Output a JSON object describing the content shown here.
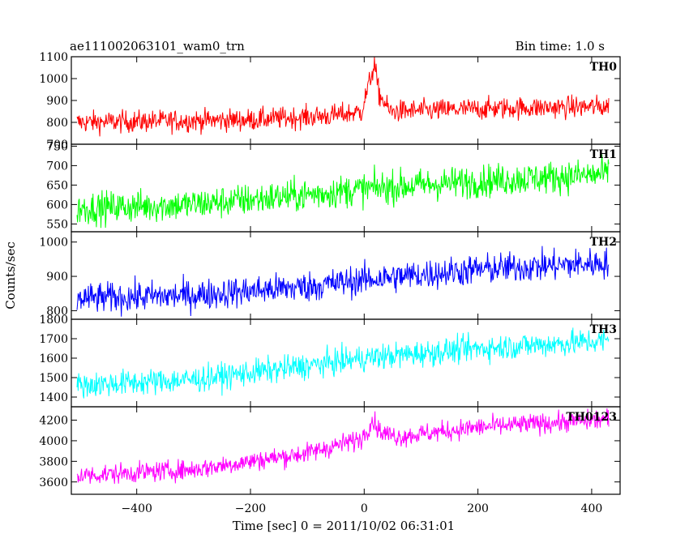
{
  "chart_data": {
    "type": "line",
    "title_left": "ae111002063101_wam0_trn",
    "title_right": "Bin time: 1.0 s",
    "xlabel": "Time [sec] 0 = 2011/10/02 06:31:01",
    "ylabel": "Counts/sec",
    "xlim": [
      -515,
      450
    ],
    "x_ticks": [
      -400,
      -200,
      0,
      200,
      400
    ],
    "x_tick_labels": [
      "−400",
      "−200",
      "0",
      "200",
      "400"
    ],
    "x_range": [
      -505,
      430
    ],
    "panels": [
      {
        "name": "TH0",
        "color": "#ff0000",
        "ylim": [
          700,
          1100
        ],
        "y_ticks": [
          700,
          800,
          900,
          1000,
          1100
        ],
        "y_tick_labels": [
          "700",
          "800",
          "900",
          "1000",
          "1100"
        ],
        "trend": [
          [
            -505,
            800
          ],
          [
            -200,
            812
          ],
          [
            -60,
            830
          ],
          [
            -5,
            848
          ],
          [
            10,
            990
          ],
          [
            18,
            1065
          ],
          [
            26,
            930
          ],
          [
            45,
            850
          ],
          [
            120,
            855
          ],
          [
            250,
            865
          ],
          [
            430,
            872
          ]
        ],
        "noise": 36
      },
      {
        "name": "TH1",
        "color": "#00ff00",
        "ylim": [
          530,
          755
        ],
        "y_ticks": [
          550,
          600,
          650,
          700,
          750
        ],
        "y_tick_labels": [
          "550",
          "600",
          "650",
          "700",
          "750"
        ],
        "trend": [
          [
            -505,
            590
          ],
          [
            -300,
            600
          ],
          [
            -100,
            625
          ],
          [
            0,
            640
          ],
          [
            200,
            660
          ],
          [
            430,
            678
          ]
        ],
        "noise": 30
      },
      {
        "name": "TH2",
        "color": "#0000ff",
        "ylim": [
          775,
          1030
        ],
        "y_ticks": [
          800,
          900,
          1000
        ],
        "y_tick_labels": [
          "800",
          "900",
          "1000"
        ],
        "trend": [
          [
            -505,
            835
          ],
          [
            -300,
            845
          ],
          [
            -100,
            870
          ],
          [
            0,
            890
          ],
          [
            200,
            920
          ],
          [
            430,
            940
          ]
        ],
        "noise": 32
      },
      {
        "name": "TH3",
        "color": "#00ffff",
        "ylim": [
          1350,
          1800
        ],
        "y_ticks": [
          1400,
          1500,
          1600,
          1700,
          1800
        ],
        "y_tick_labels": [
          "1400",
          "1500",
          "1600",
          "1700",
          "1800"
        ],
        "trend": [
          [
            -505,
            1460
          ],
          [
            -300,
            1490
          ],
          [
            -100,
            1560
          ],
          [
            0,
            1600
          ],
          [
            200,
            1650
          ],
          [
            430,
            1690
          ]
        ],
        "noise": 48
      },
      {
        "name": "TH0123",
        "color": "#ff00ff",
        "ylim": [
          3480,
          4330
        ],
        "y_ticks": [
          3600,
          3800,
          4000,
          4200
        ],
        "y_tick_labels": [
          "3600",
          "3800",
          "4000",
          "4200"
        ],
        "trend": [
          [
            -505,
            3660
          ],
          [
            -300,
            3720
          ],
          [
            -100,
            3880
          ],
          [
            -5,
            4020
          ],
          [
            15,
            4200
          ],
          [
            30,
            4080
          ],
          [
            60,
            4040
          ],
          [
            200,
            4130
          ],
          [
            430,
            4210
          ]
        ],
        "noise": 70
      }
    ],
    "grid": false,
    "legend": "none"
  }
}
